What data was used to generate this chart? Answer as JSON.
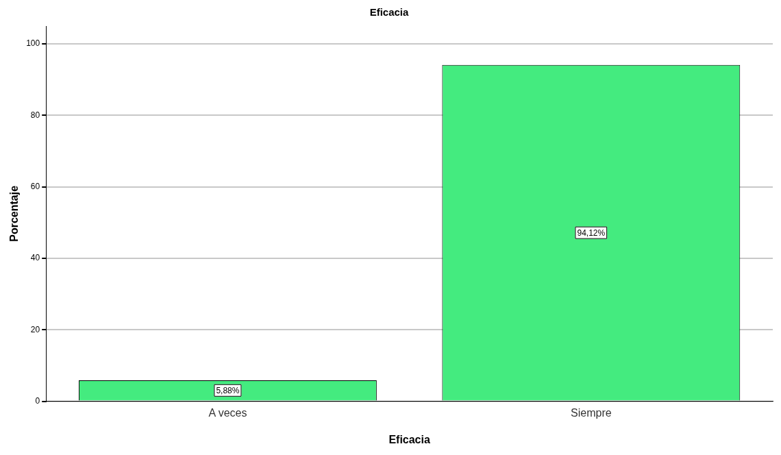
{
  "chart_data": {
    "type": "bar",
    "title": "Eficacia",
    "xlabel": "Eficacia",
    "ylabel": "Porcentaje",
    "categories": [
      "A veces",
      "Siempre"
    ],
    "values": [
      5.88,
      94.12
    ],
    "color": "#44eb7f",
    "value_labels": [
      "5,88%",
      "94,12%"
    ],
    "ylim": [
      0,
      105
    ],
    "yticks": [
      0,
      20,
      40,
      60,
      80,
      100
    ],
    "grid": "y",
    "legend": false
  }
}
